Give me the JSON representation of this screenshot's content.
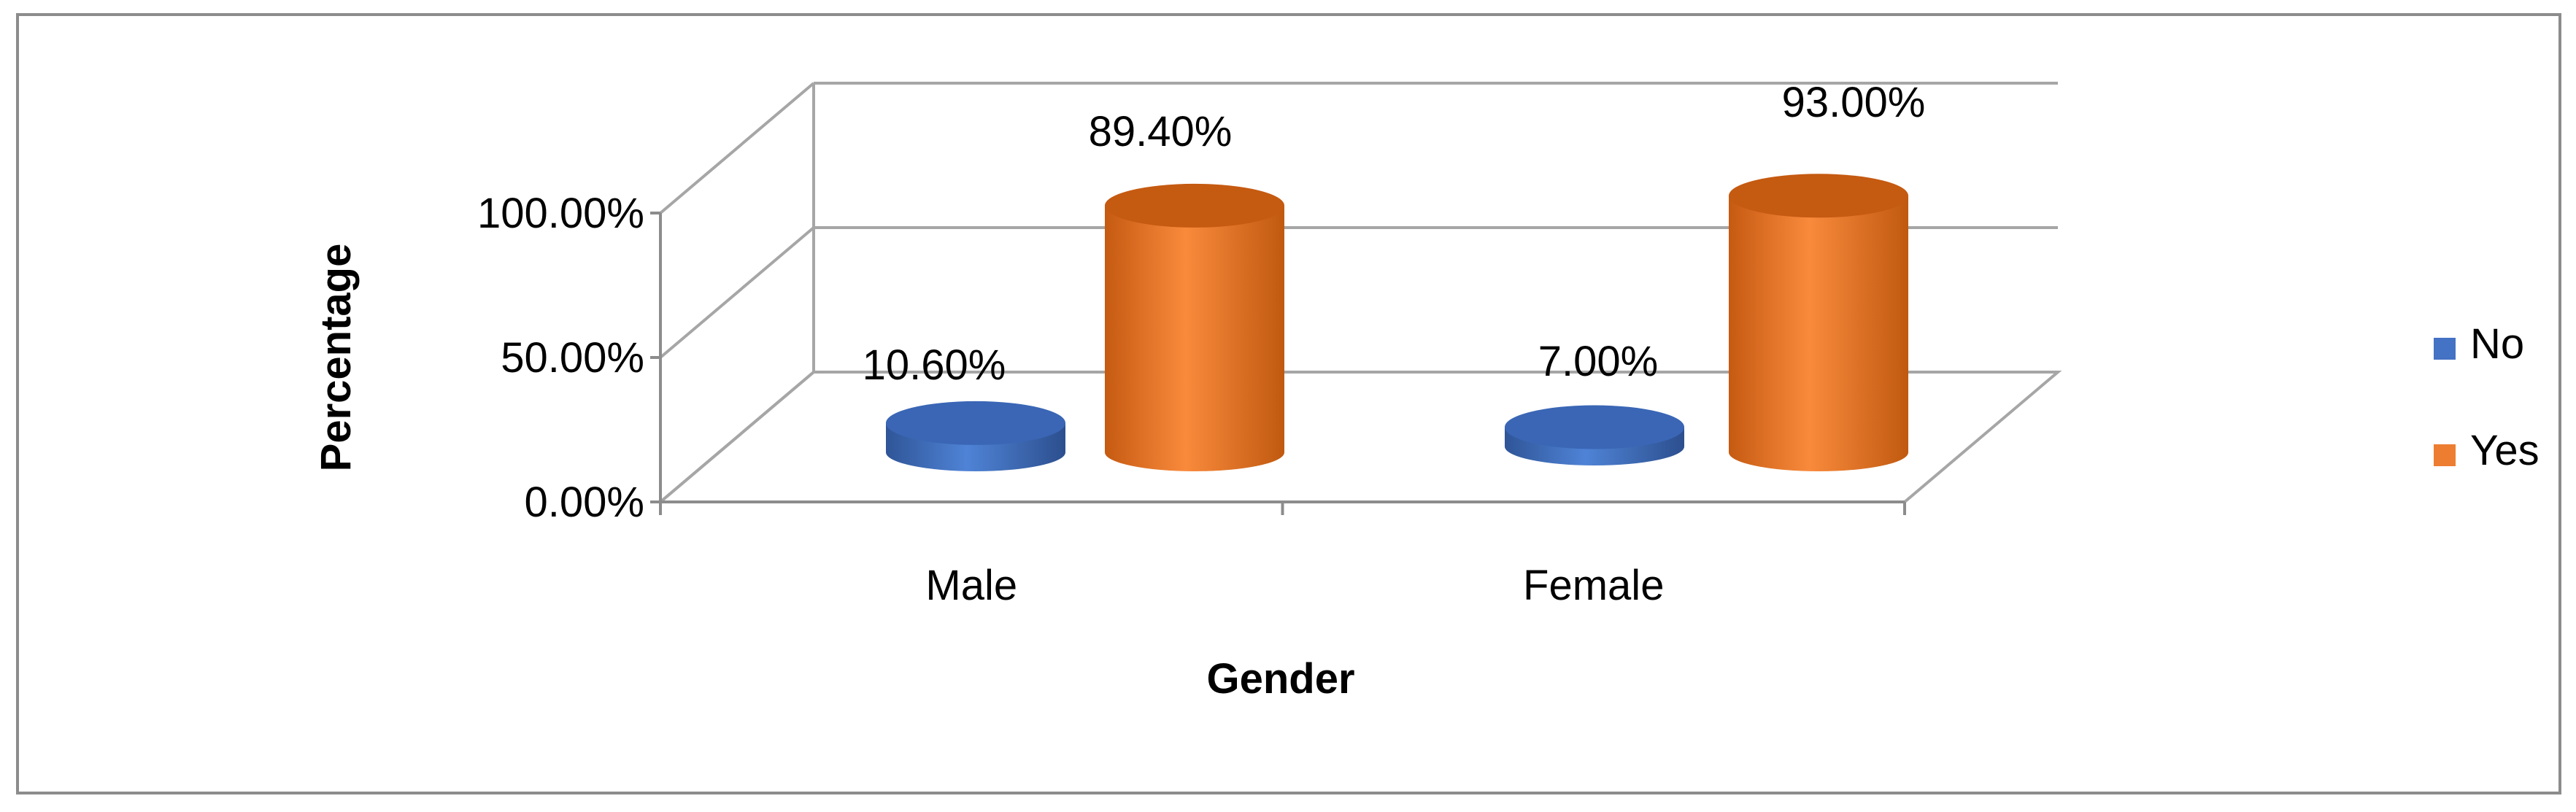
{
  "chart_data": {
    "type": "bar",
    "style": "3d-cylinder",
    "categories": [
      "Male",
      "Female"
    ],
    "series": [
      {
        "name": "No",
        "values": [
          10.6,
          7.0
        ],
        "labels": [
          "10.60%",
          "7.00%"
        ],
        "color": "#4472C4"
      },
      {
        "name": "Yes",
        "values": [
          89.4,
          93.0
        ],
        "labels": [
          "89.40%",
          "93.00%"
        ],
        "color": "#ED7D31"
      }
    ],
    "ylim": [
      0,
      100
    ],
    "yticks": [
      0,
      50,
      100
    ],
    "ytick_labels": [
      "0.00%",
      "50.00%",
      "100.00%"
    ],
    "xlabel": "Gender",
    "ylabel": "Percentage",
    "legend": {
      "position": "right"
    },
    "grid": true
  }
}
